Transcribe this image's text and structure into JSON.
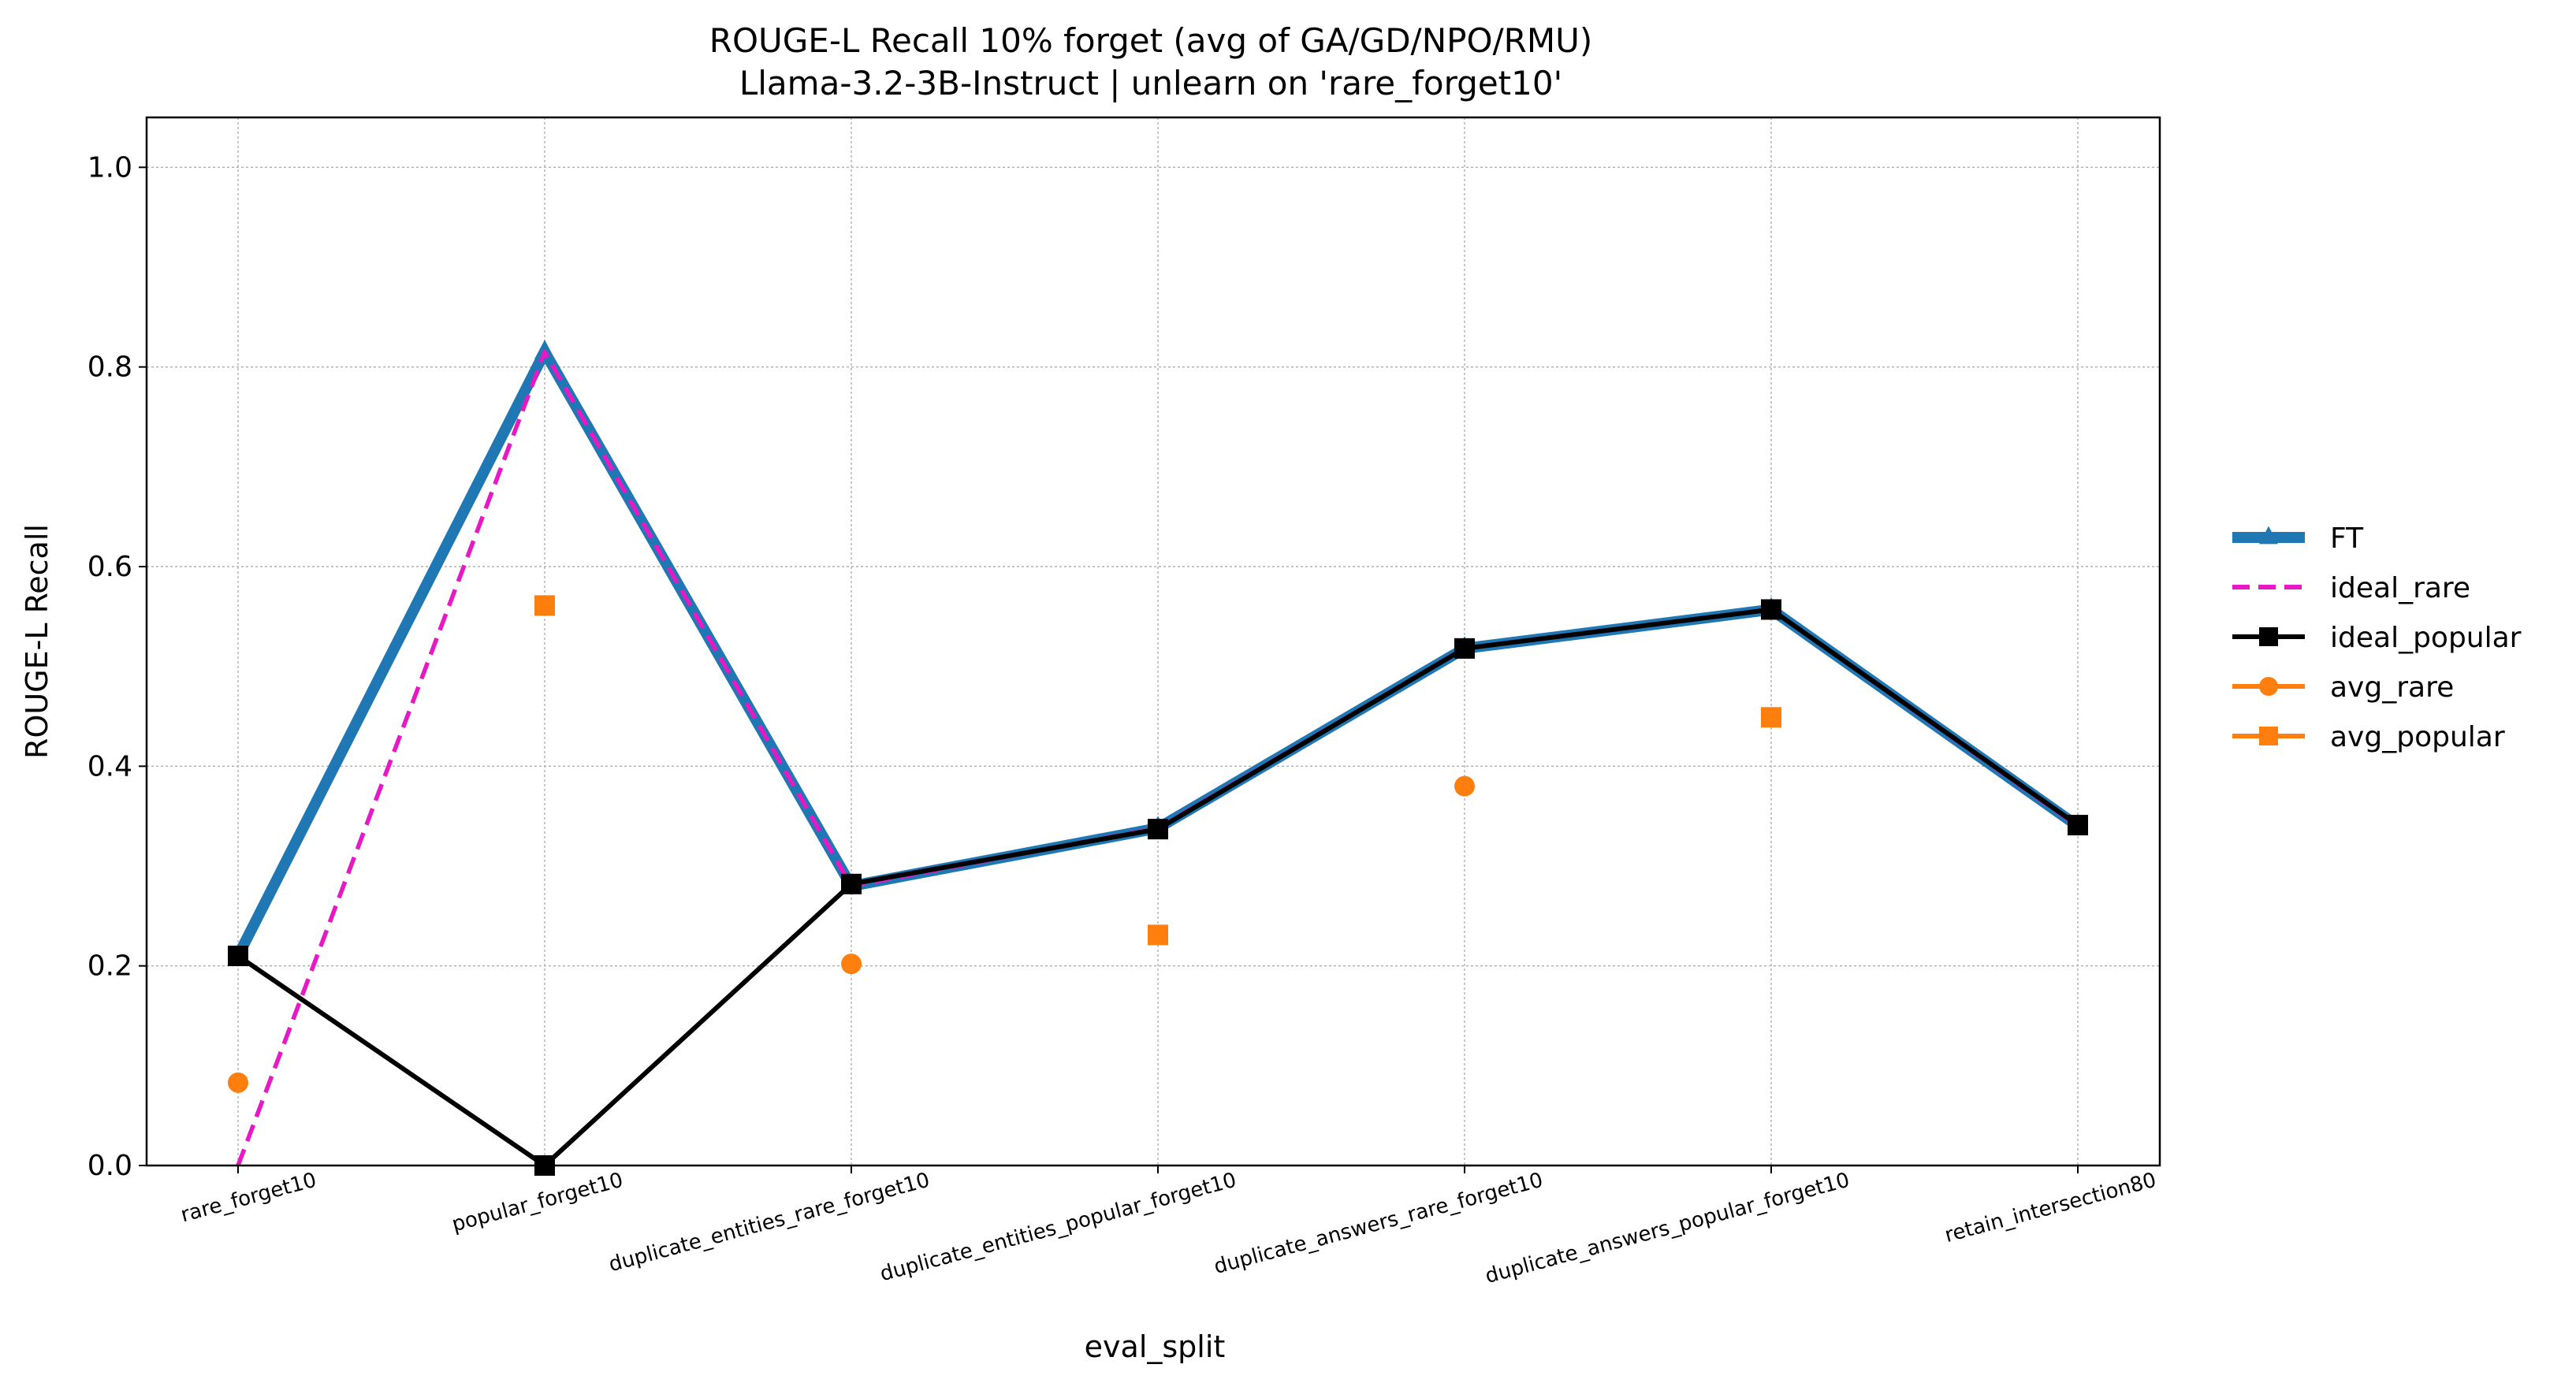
{
  "chart_data": {
    "type": "line",
    "title": "ROUGE-L Recall 10% forget (avg of GA/GD/NPO/RMU)",
    "subtitle": "Llama-3.2-3B-Instruct | unlearn on 'rare_forget10'",
    "xlabel": "eval_split",
    "ylabel": "ROUGE-L Recall",
    "ylim": [
      0.0,
      1.05
    ],
    "yticks": [
      "0.0",
      "0.2",
      "0.4",
      "0.6",
      "0.8",
      "1.0"
    ],
    "grid": true,
    "legend_position": "outside-right",
    "categories": [
      "rare_forget10",
      "popular_forget10",
      "duplicate_entities_rare_forget10",
      "duplicate_entities_popular_forget10",
      "duplicate_answers_rare_forget10",
      "duplicate_answers_popular_forget10",
      "retain_intersection80"
    ],
    "series": [
      {
        "name": "FT",
        "color": "#1f77b4",
        "style": "solid-thick",
        "marker": "triangle",
        "values": [
          0.21,
          0.815,
          0.28,
          0.338,
          0.518,
          0.557,
          0.34
        ]
      },
      {
        "name": "ideal_rare",
        "color": "#e619c4",
        "style": "dashed",
        "marker": "none",
        "values": [
          0.0,
          0.815,
          0.28,
          0.338,
          0.518,
          0.557,
          0.34
        ]
      },
      {
        "name": "ideal_popular",
        "color": "#000000",
        "style": "solid",
        "marker": "square",
        "values": [
          0.21,
          0.0,
          0.282,
          0.337,
          0.518,
          0.557,
          0.341
        ]
      },
      {
        "name": "avg_rare",
        "color": "#ff7f0e",
        "style": "markers",
        "marker": "circle",
        "values": [
          0.083,
          null,
          0.202,
          null,
          0.38,
          null,
          null
        ]
      },
      {
        "name": "avg_popular",
        "color": "#ff7f0e",
        "style": "markers",
        "marker": "square",
        "values": [
          null,
          0.561,
          null,
          0.231,
          null,
          0.449,
          null
        ]
      }
    ]
  }
}
